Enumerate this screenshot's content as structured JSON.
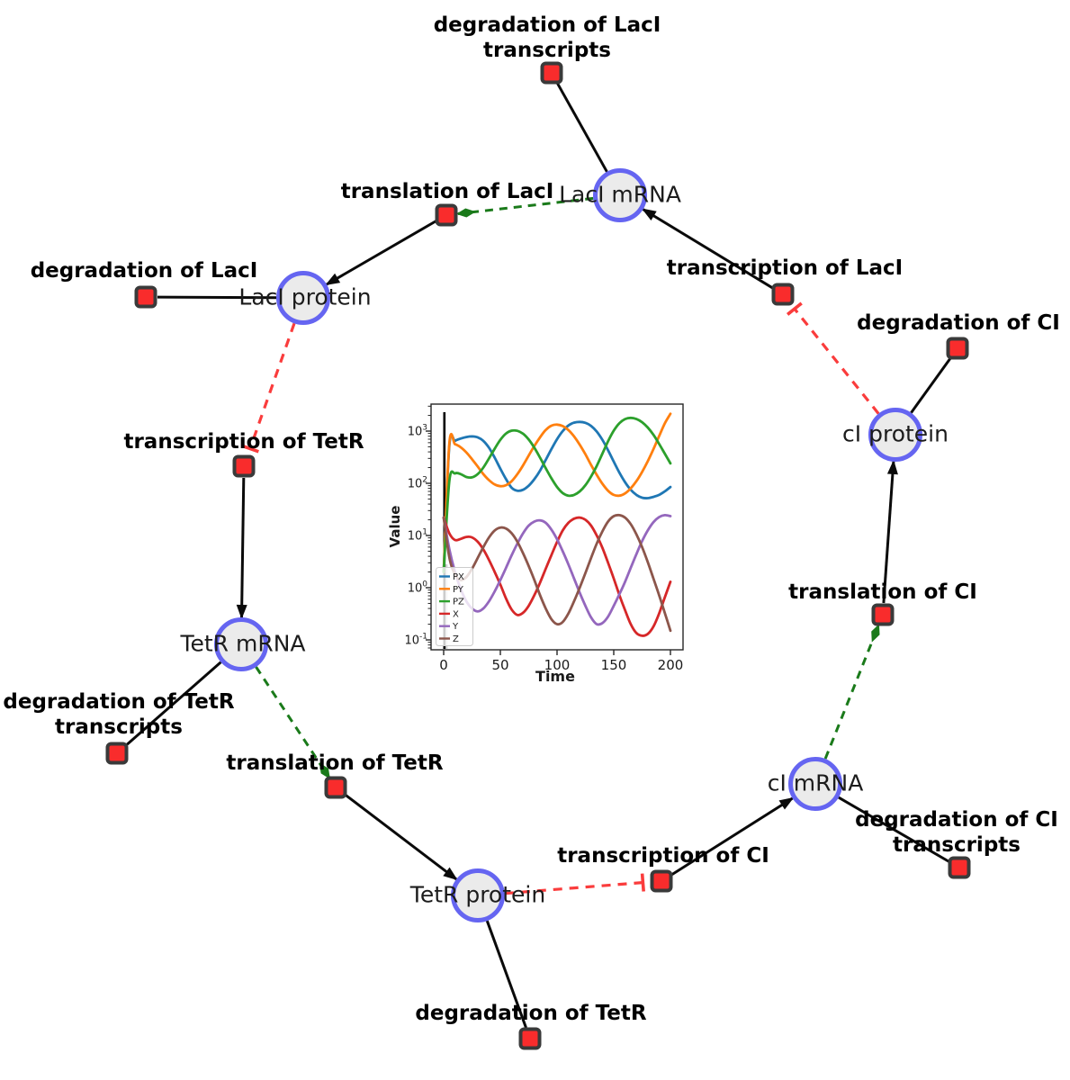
{
  "diagram": {
    "species": [
      {
        "label": "LacI mRNA"
      },
      {
        "label": "LacI protein"
      },
      {
        "label": "TetR mRNA"
      },
      {
        "label": "TetR protein"
      },
      {
        "label": "cI mRNA"
      },
      {
        "label": "cI protein"
      }
    ],
    "reactions": [
      {
        "label": "degradation of LacI\ntranscripts"
      },
      {
        "label": "translation of LacI"
      },
      {
        "label": "degradation of LacI"
      },
      {
        "label": "transcription of TetR"
      },
      {
        "label": "degradation of TetR\ntranscripts"
      },
      {
        "label": "translation of TetR"
      },
      {
        "label": "degradation of TetR"
      },
      {
        "label": "transcription of CI"
      },
      {
        "label": "degradation of CI\ntranscripts"
      },
      {
        "label": "translation of CI"
      },
      {
        "label": "degradation of CI"
      },
      {
        "label": "transcription of LacI"
      }
    ],
    "edges": [
      {
        "from": "LacI mRNA",
        "to": "degradation of LacI transcripts",
        "type": "consumption"
      },
      {
        "from": "LacI mRNA",
        "to": "translation of LacI",
        "type": "modifier"
      },
      {
        "from": "translation of LacI",
        "to": "LacI protein",
        "type": "production"
      },
      {
        "from": "LacI protein",
        "to": "degradation of LacI",
        "type": "consumption"
      },
      {
        "from": "LacI protein",
        "to": "transcription of TetR",
        "type": "inhibition"
      },
      {
        "from": "transcription of TetR",
        "to": "TetR mRNA",
        "type": "production"
      },
      {
        "from": "TetR mRNA",
        "to": "degradation of TetR transcripts",
        "type": "consumption"
      },
      {
        "from": "TetR mRNA",
        "to": "translation of TetR",
        "type": "modifier"
      },
      {
        "from": "translation of TetR",
        "to": "TetR protein",
        "type": "production"
      },
      {
        "from": "TetR protein",
        "to": "degradation of TetR",
        "type": "consumption"
      },
      {
        "from": "TetR protein",
        "to": "transcription of CI",
        "type": "inhibition"
      },
      {
        "from": "transcription of CI",
        "to": "cI mRNA",
        "type": "production"
      },
      {
        "from": "cI mRNA",
        "to": "degradation of CI transcripts",
        "type": "consumption"
      },
      {
        "from": "cI mRNA",
        "to": "translation of CI",
        "type": "modifier"
      },
      {
        "from": "translation of CI",
        "to": "cI protein",
        "type": "production"
      },
      {
        "from": "cI protein",
        "to": "degradation of CI",
        "type": "consumption"
      },
      {
        "from": "cI protein",
        "to": "transcription of LacI",
        "type": "inhibition"
      },
      {
        "from": "transcription of LacI",
        "to": "LacI mRNA",
        "type": "production"
      }
    ],
    "colors": {
      "species_fill": "#ebebeb",
      "species_border": "#6565f1",
      "reaction_fill": "#f92c2c",
      "reaction_border": "#3a3a3a",
      "production_edge": "#0a0a0a",
      "modifier_edge": "#1a7a1a",
      "inhibition_edge": "#fa3c3c"
    }
  },
  "chart_data": {
    "type": "line",
    "title": "",
    "xlabel": "Time",
    "ylabel": "Value",
    "y_scale": "log",
    "x_ticks": [
      0,
      50,
      100,
      150,
      200
    ],
    "y_tick_exponents": [
      3,
      2,
      1,
      0,
      -1
    ],
    "xlim": [
      -11,
      211
    ],
    "ylim": [
      0.065,
      3300
    ],
    "grid": false,
    "legend_position": "lower left",
    "annotations": [
      {
        "type": "vline",
        "x": 0,
        "color": "#000000"
      }
    ],
    "x": [
      0,
      5,
      10,
      15,
      20,
      25,
      30,
      35,
      40,
      45,
      50,
      55,
      60,
      65,
      70,
      75,
      80,
      85,
      90,
      95,
      100,
      105,
      110,
      115,
      120,
      125,
      130,
      135,
      140,
      145,
      150,
      155,
      160,
      165,
      170,
      175,
      180,
      185,
      190,
      195,
      200
    ],
    "series": [
      {
        "name": "PX",
        "color": "#1f77b4",
        "values": [
          2,
          520,
          650,
          720,
          770,
          790,
          760,
          650,
          480,
          310,
          190,
          120,
          82,
          72,
          75,
          90,
          120,
          175,
          280,
          450,
          700,
          1000,
          1280,
          1450,
          1500,
          1440,
          1260,
          980,
          680,
          430,
          260,
          160,
          105,
          75,
          60,
          53,
          52,
          55,
          60,
          70,
          85
        ]
      },
      {
        "name": "PY",
        "color": "#ff7f0e",
        "values": [
          2,
          580,
          560,
          490,
          390,
          290,
          210,
          150,
          115,
          95,
          88,
          92,
          110,
          150,
          220,
          340,
          520,
          760,
          1050,
          1270,
          1330,
          1250,
          1050,
          790,
          550,
          360,
          225,
          145,
          98,
          72,
          60,
          58,
          64,
          80,
          110,
          165,
          265,
          450,
          800,
          1400,
          2150
        ]
      },
      {
        "name": "PZ",
        "color": "#2ca02c",
        "values": [
          2,
          110,
          155,
          150,
          132,
          130,
          150,
          200,
          300,
          460,
          680,
          900,
          1020,
          1010,
          890,
          690,
          480,
          310,
          195,
          125,
          85,
          65,
          58,
          60,
          70,
          92,
          135,
          215,
          370,
          640,
          1020,
          1420,
          1700,
          1790,
          1700,
          1480,
          1170,
          850,
          570,
          370,
          240
        ]
      },
      {
        "name": "X",
        "color": "#d62728",
        "values": [
          22,
          11,
          8.2,
          8.6,
          9.4,
          9.2,
          7.6,
          5.4,
          3.4,
          2.0,
          1.15,
          0.62,
          0.38,
          0.3,
          0.33,
          0.45,
          0.72,
          1.25,
          2.3,
          4.2,
          7.5,
          12.5,
          17.5,
          21,
          22,
          20,
          15.5,
          10,
          5.8,
          3.0,
          1.5,
          0.72,
          0.37,
          0.2,
          0.135,
          0.12,
          0.13,
          0.18,
          0.32,
          0.65,
          1.3
        ]
      },
      {
        "name": "Y",
        "color": "#9467bd",
        "values": [
          22,
          5.5,
          2.0,
          0.95,
          0.55,
          0.4,
          0.35,
          0.4,
          0.55,
          0.85,
          1.4,
          2.4,
          4.2,
          7.0,
          11,
          15.5,
          18.5,
          19.5,
          17.5,
          13,
          8.5,
          5.0,
          2.8,
          1.5,
          0.8,
          0.45,
          0.27,
          0.2,
          0.21,
          0.28,
          0.45,
          0.75,
          1.3,
          2.4,
          4.4,
          7.8,
          12.5,
          18,
          22.5,
          24.5,
          23.5
        ]
      },
      {
        "name": "Z",
        "color": "#8c564b",
        "values": [
          22,
          3.8,
          1.8,
          1.4,
          1.6,
          2.3,
          3.7,
          6.0,
          9.2,
          12.5,
          14.2,
          13.6,
          11,
          7.6,
          4.6,
          2.6,
          1.4,
          0.72,
          0.4,
          0.25,
          0.2,
          0.22,
          0.32,
          0.55,
          1.0,
          1.9,
          3.7,
          7.0,
          12,
          18.5,
          23.5,
          24.5,
          22,
          16.5,
          10.5,
          6.0,
          3.1,
          1.5,
          0.72,
          0.33,
          0.15
        ]
      }
    ]
  }
}
